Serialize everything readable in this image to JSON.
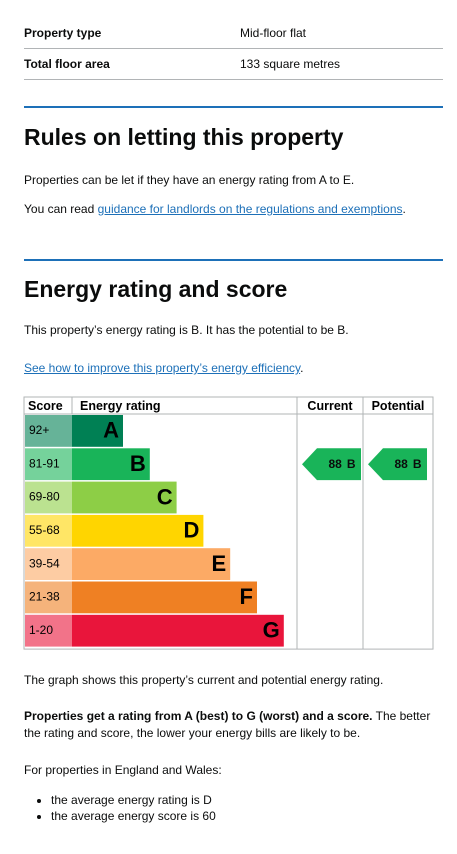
{
  "summary": {
    "rows": [
      {
        "key": "Property type",
        "value": "Mid-floor flat"
      },
      {
        "key": "Total floor area",
        "value": "133 square metres"
      }
    ]
  },
  "letting": {
    "heading": "Rules on letting this property",
    "p1": "Properties can be let if they have an energy rating from A to E.",
    "p2_prefix": "You can read ",
    "p2_link": "guidance for landlords on the regulations and exemptions",
    "p2_suffix": "."
  },
  "energy": {
    "heading": "Energy rating and score",
    "p1": "This property’s energy rating is B. It has the potential to be B.",
    "link": "See how to improve this property’s energy efficiency",
    "link_suffix": "."
  },
  "rating_chart": {
    "headers": [
      "Score",
      "Energy rating",
      "Current",
      "Potential"
    ],
    "bands": [
      {
        "score": "92+",
        "letter": "A",
        "color": "#008054",
        "light": "#66b398"
      },
      {
        "score": "81-91",
        "letter": "B",
        "color": "#19b459",
        "light": "#75d29b"
      },
      {
        "score": "69-80",
        "letter": "C",
        "color": "#8dce46",
        "light": "#bbe290"
      },
      {
        "score": "55-68",
        "letter": "D",
        "color": "#ffd500",
        "light": "#ffe666"
      },
      {
        "score": "39-54",
        "letter": "E",
        "color": "#fcaa65",
        "light": "#fdcca3"
      },
      {
        "score": "21-38",
        "letter": "F",
        "color": "#ef8023",
        "light": "#f5b37b"
      },
      {
        "score": "1-20",
        "letter": "G",
        "color": "#e9153b",
        "light": "#f27389"
      }
    ],
    "current": {
      "score": 88,
      "band": "B"
    },
    "potential": {
      "score": 88,
      "band": "B"
    }
  },
  "after": {
    "p1": "The graph shows this property’s current and potential energy rating.",
    "p2_bold": "Properties get a rating from A (best) to G (worst) and a score.",
    "p2_rest": " The better the rating and score, the lower your energy bills are likely to be.",
    "p3": "For properties in England and Wales:",
    "bullets": [
      "the average energy rating is D",
      "the average energy score is 60"
    ]
  }
}
